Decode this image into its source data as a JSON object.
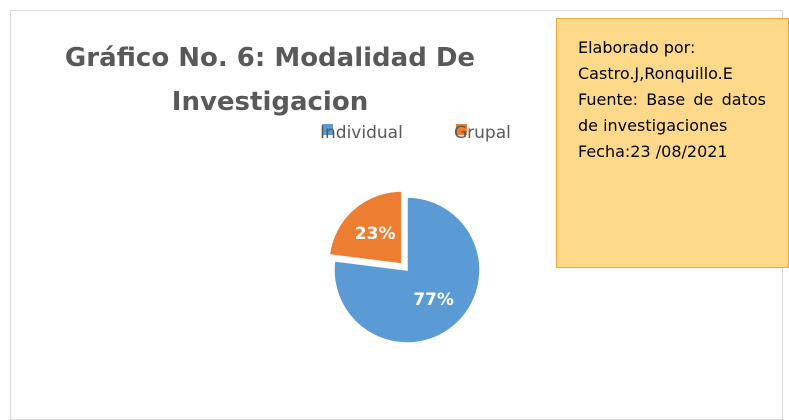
{
  "chart_data": {
    "type": "pie",
    "title": "Gráfico No. 6: Modalidad De Investigacion",
    "categories": [
      "Individual",
      "Grupal"
    ],
    "values": [
      77,
      23
    ],
    "value_labels": [
      "77%",
      "23%"
    ],
    "colors": [
      "#5b9bd5",
      "#ed7d31"
    ],
    "exploded": [
      false,
      true
    ],
    "legend": "top"
  },
  "note": {
    "lines": [
      "Elaborado por:",
      "Castro.J,Ronquillo.E",
      "Fuente: Base de datos de investigaciones",
      "Fecha:23 /08/2021"
    ]
  }
}
